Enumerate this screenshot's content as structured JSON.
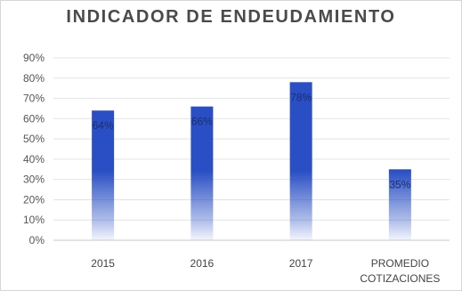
{
  "chart_data": {
    "type": "bar",
    "title": "INDICADOR DE ENDEUDAMIENTO",
    "categories": [
      "2015",
      "2016",
      "2017",
      "PROMEDIO COTIZACIONES"
    ],
    "category_lines": [
      [
        "2015"
      ],
      [
        "2016"
      ],
      [
        "2017"
      ],
      [
        "PROMEDIO",
        "COTIZACIONES"
      ]
    ],
    "values": [
      64,
      66,
      78,
      35
    ],
    "data_labels": [
      "64%",
      "66%",
      "78%",
      "35%"
    ],
    "yticks": [
      "0%",
      "10%",
      "20%",
      "30%",
      "40%",
      "50%",
      "60%",
      "70%",
      "80%",
      "90%"
    ],
    "ylim": [
      0,
      90
    ],
    "grid": true,
    "legend": "none",
    "bar_color": "#2a4fc4"
  }
}
